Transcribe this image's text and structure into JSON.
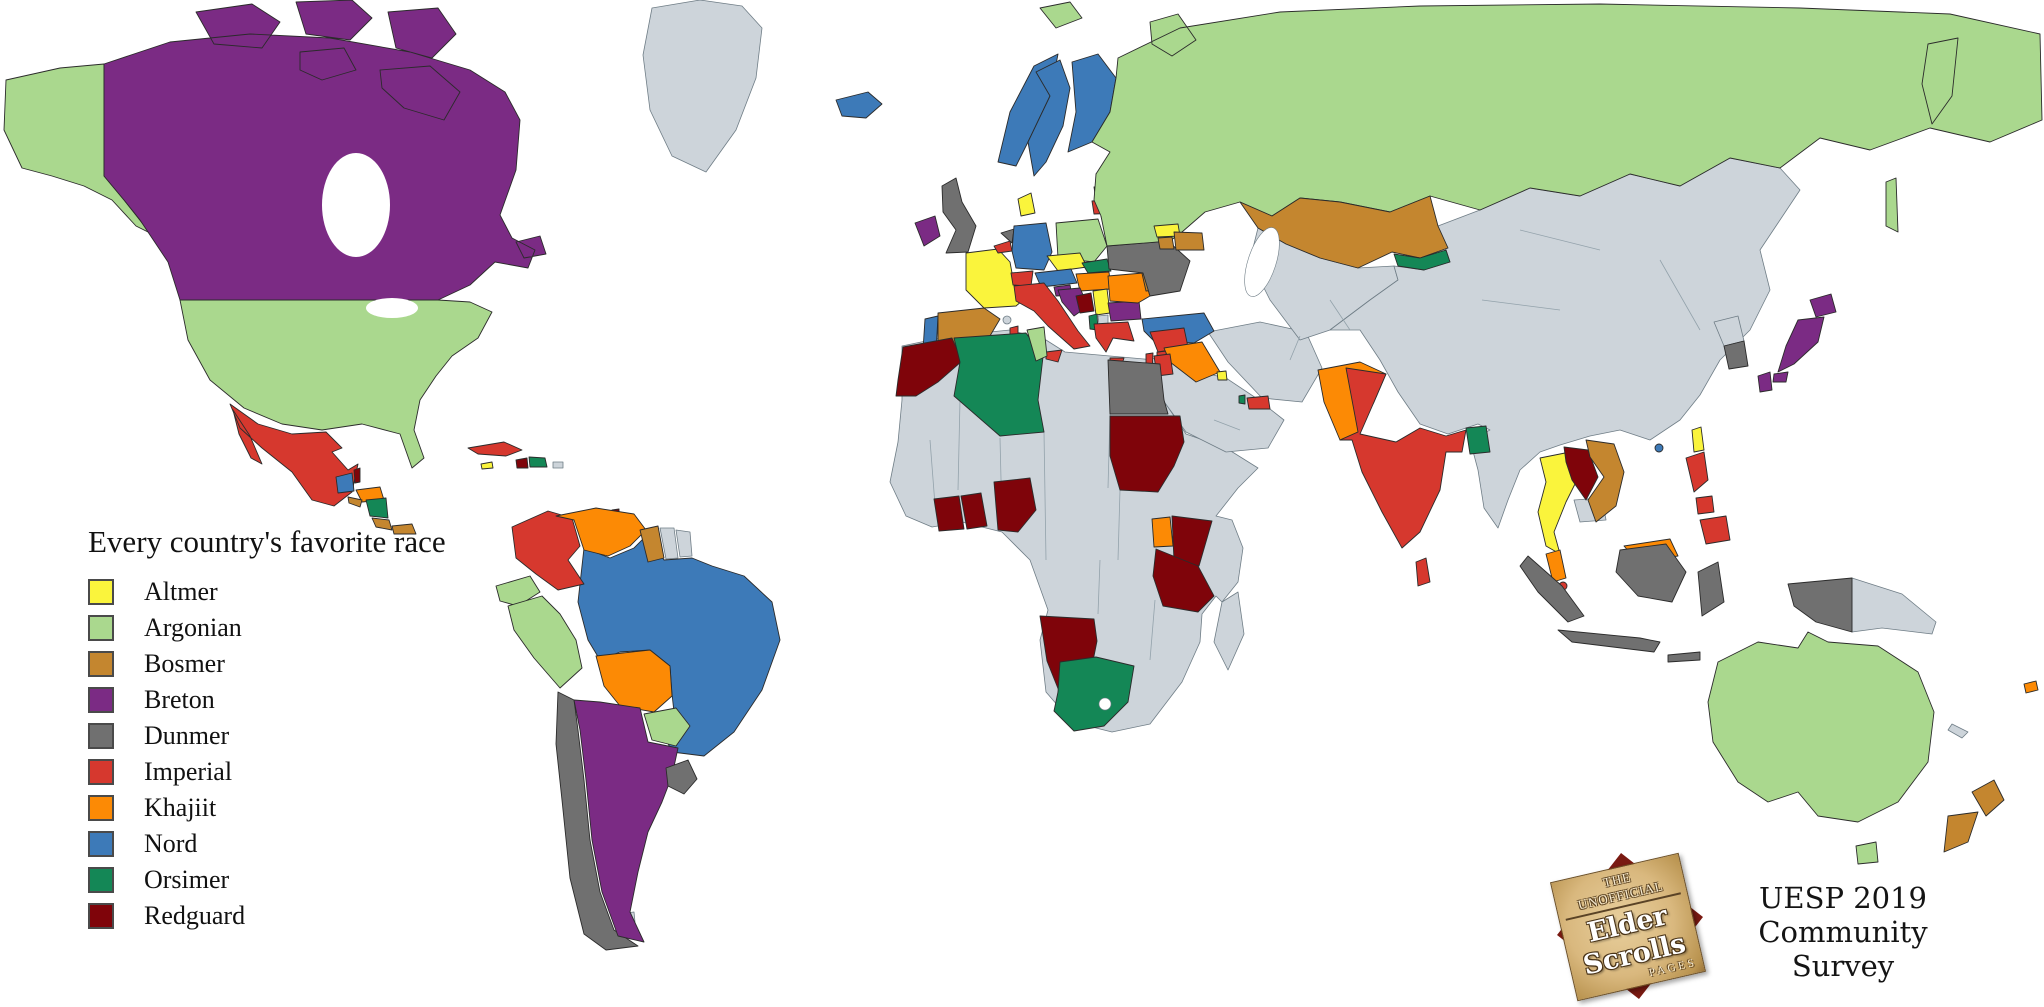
{
  "legend": {
    "title": "Every country's favorite race"
  },
  "logo": {
    "banner_top": "THE UNOFFICIAL",
    "banner_main": "Elder Scrolls",
    "banner_sub": "PAGES",
    "caption_line1": "UESP 2019",
    "caption_line2": "Community",
    "caption_line3": "Survey"
  },
  "chart_data": {
    "type": "choropleth_map",
    "title": "Every country's favorite race",
    "subtitle": "UESP 2019 Community Survey",
    "legend_position": "left",
    "legend_entries": [
      "Altmer",
      "Argonian",
      "Bosmer",
      "Breton",
      "Dunmer",
      "Imperial",
      "Khajiit",
      "Nord",
      "Orsimer",
      "Redguard"
    ],
    "race_colors": {
      "Altmer": "#FAF43C",
      "Argonian": "#AAD88E",
      "Bosmer": "#C4862F",
      "Breton": "#7B2B84",
      "Dunmer": "#707070",
      "Imperial": "#D6382E",
      "Khajiit": "#FC8A05",
      "Nord": "#3D7AB8",
      "Orsimer": "#148756",
      "Redguard": "#7F040A"
    },
    "no_data_color": "#CDD4DA",
    "ocean_color": "#FFFFFF",
    "border_color": "#2B2B2B",
    "countries": {
      "Greenland": "No data",
      "United States": "Argonian",
      "Canada": "Breton",
      "Mexico": "Imperial",
      "Guatemala": "Nord",
      "Belize": "Redguard",
      "Honduras": "Khajiit",
      "El Salvador": "Bosmer",
      "Nicaragua": "Orsimer",
      "Costa Rica": "Bosmer",
      "Panama": "Bosmer",
      "Cuba": "Imperial",
      "Jamaica": "Altmer",
      "Haiti": "Redguard",
      "Dominican Republic": "Orsimer",
      "Puerto Rico": "No data",
      "Trinidad and Tobago": "Redguard",
      "Colombia": "Imperial",
      "Venezuela": "Khajiit",
      "Guyana": "Bosmer",
      "Suriname": "No data",
      "French Guiana": "No data",
      "Ecuador": "Argonian",
      "Peru": "Argonian",
      "Brazil": "Nord",
      "Bolivia": "Khajiit",
      "Paraguay": "Argonian",
      "Chile": "Dunmer",
      "Argentina": "Breton",
      "Uruguay": "Dunmer",
      "Falkland Islands": "No data",
      "Iceland": "Nord",
      "Ireland": "Breton",
      "United Kingdom": "Dunmer",
      "Portugal": "Nord",
      "Spain": "Bosmer",
      "France": "Altmer",
      "Corsica": "No data",
      "Belgium": "Imperial",
      "Netherlands": "Dunmer",
      "Germany": "Nord",
      "Denmark": "Altmer",
      "Norway": "Nord",
      "Sweden": "Nord",
      "Finland": "Nord",
      "Estonia": "Nord",
      "Latvia": "Nord",
      "Lithuania": "Imperial",
      "Poland": "Argonian",
      "Czechia": "Altmer",
      "Slovakia": "Orsimer",
      "Austria": "Nord",
      "Switzerland": "Imperial",
      "Hungary": "Khajiit",
      "Slovenia": "Breton",
      "Croatia": "Breton",
      "Bosnia and Herzegovina": "Redguard",
      "Serbia": "Altmer",
      "Italy": "Imperial",
      "Albania": "Orsimer",
      "North Macedonia": "No data",
      "Bulgaria": "Breton",
      "Greece": "Imperial",
      "Romania": "Khajiit",
      "Moldova": "Bosmer",
      "Ukraine": "Dunmer",
      "Belarus": "Orsimer",
      "Russia": "Argonian",
      "Turkey": "Nord",
      "Cyprus": "Imperial",
      "Georgia": "Altmer",
      "Armenia": "Bosmer",
      "Azerbaijan": "Bosmer",
      "Kazakhstan": "Bosmer",
      "Kyrgyzstan": "Orsimer",
      "Syria": "Imperial",
      "Iraq": "Khajiit",
      "Israel": "Imperial",
      "Jordan": "Imperial",
      "Kuwait": "Altmer",
      "Qatar": "Orsimer",
      "United Arab Emirates": "Imperial",
      "Saudi Arabia": "No data",
      "Iran": "No data",
      "Egypt": "Dunmer",
      "Morocco": "Redguard",
      "Algeria": "Orsimer",
      "Tunisia": "Argonian",
      "Libya": "No data",
      "Sudan": "Redguard",
      "Nigeria": "Redguard",
      "Ghana": "Redguard",
      "Ivory Coast": "Redguard",
      "Uganda": "Khajiit",
      "Kenya": "Redguard",
      "Tanzania": "Redguard",
      "Namibia": "Redguard",
      "South Africa": "Orsimer",
      "Madagascar": "No data",
      "Pakistan": "Khajiit",
      "India": "Imperial",
      "Nepal": "No data",
      "Bangladesh": "Orsimer",
      "Sri Lanka": "Imperial",
      "China": "No data",
      "Mongolia": "No data",
      "Myanmar": "No data",
      "Thailand": "Altmer",
      "Laos": "Redguard",
      "Vietnam": "Bosmer",
      "Cambodia": "No data",
      "Malaysia": "Khajiit",
      "Singapore": "Imperial",
      "Indonesia": "Dunmer",
      "Philippines": "Imperial",
      "Taiwan": "Altmer",
      "Hong Kong": "Nord",
      "South Korea": "Dunmer",
      "North Korea": "No data",
      "Japan": "Breton",
      "Papua New Guinea": "No data",
      "New Caledonia": "No data",
      "Australia": "Argonian",
      "New Zealand": "Bosmer",
      "Fiji": "Khajiit"
    }
  }
}
